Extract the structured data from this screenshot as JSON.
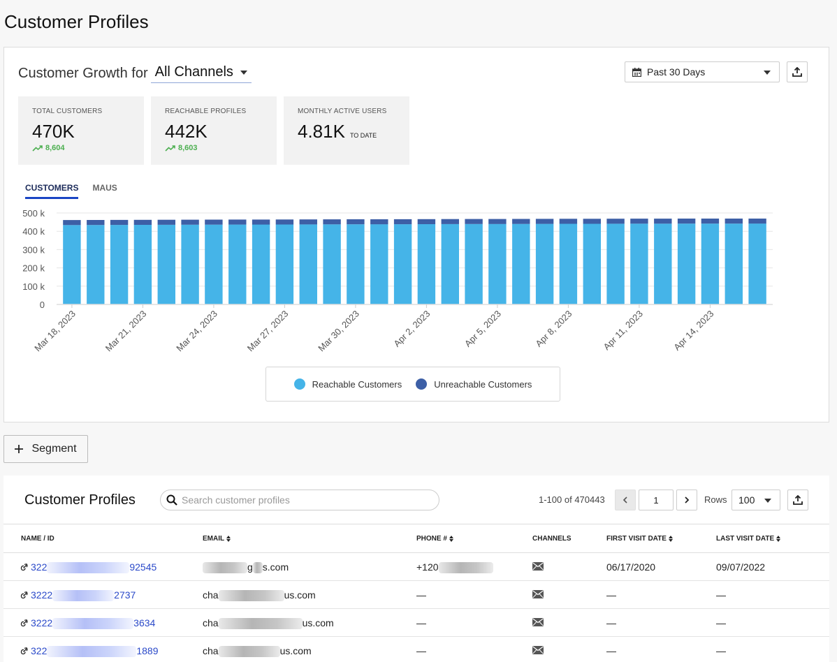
{
  "page": {
    "title": "Customer Profiles"
  },
  "growth": {
    "title_prefix": "Customer Growth for",
    "channel": "All Channels",
    "date_range": "Past 30 Days"
  },
  "stats": [
    {
      "label": "TOTAL CUSTOMERS",
      "value": "470K",
      "delta": "8,604"
    },
    {
      "label": "REACHABLE PROFILES",
      "value": "442K",
      "delta": "8,603"
    },
    {
      "label": "MONTHLY ACTIVE USERS",
      "value": "4.81K",
      "suffix": "TO DATE"
    }
  ],
  "tabs": [
    {
      "label": "CUSTOMERS",
      "active": true
    },
    {
      "label": "MAUS",
      "active": false
    }
  ],
  "chart_data": {
    "type": "bar",
    "stacked": true,
    "x_tick_labels": [
      "Mar 18, 2023",
      "Mar 21, 2023",
      "Mar 24, 2023",
      "Mar 27, 2023",
      "Mar 30, 2023",
      "Apr 2, 2023",
      "Apr 5, 2023",
      "Apr 8, 2023",
      "Apr 11, 2023",
      "Apr 14, 2023"
    ],
    "y_ticks": [
      "0",
      "100 k",
      "200 k",
      "300 k",
      "400 k",
      "500 k"
    ],
    "ylim": [
      0,
      500000
    ],
    "series": [
      {
        "name": "Reachable Customers",
        "color": "#45b4e8",
        "values": [
          434000,
          434400,
          434800,
          435200,
          435600,
          436000,
          436300,
          436600,
          436900,
          437200,
          437500,
          437800,
          438100,
          438400,
          438700,
          439000,
          439300,
          439600,
          439900,
          440200,
          440500,
          440800,
          441100,
          441300,
          441500,
          441700,
          441900,
          442000,
          442100,
          442200
        ]
      },
      {
        "name": "Unreachable Customers",
        "color": "#3d5fa6",
        "values": [
          27400,
          27400,
          27400,
          27400,
          27400,
          27400,
          27400,
          27400,
          27400,
          27400,
          27400,
          27400,
          27400,
          27400,
          27400,
          27400,
          27400,
          27400,
          27400,
          27400,
          27400,
          27400,
          27400,
          27400,
          27400,
          27400,
          27400,
          27400,
          27400,
          27400
        ]
      }
    ],
    "legend": "bottom-center",
    "grid": true
  },
  "segment_button": "Segment",
  "profiles": {
    "title": "Customer Profiles",
    "search_placeholder": "Search customer profiles",
    "pagination": "1-100 of 470443",
    "page": "1",
    "rows_label": "Rows",
    "rows_value": "100",
    "columns": [
      "NAME / ID",
      "EMAIL",
      "PHONE #",
      "CHANNELS",
      "FIRST VISIT DATE",
      "LAST VISIT DATE"
    ],
    "rows": [
      {
        "id_start": "322",
        "id_end": "92545",
        "email_start": "",
        "email_end": "s.com",
        "phone": "+120",
        "first_visit": "06/17/2020",
        "last_visit": "09/07/2022"
      },
      {
        "id_start": "3222",
        "id_end": "2737",
        "email_start": "cha",
        "email_end": "us.com",
        "phone": "—",
        "first_visit": "—",
        "last_visit": "—"
      },
      {
        "id_start": "3222",
        "id_end": "3634",
        "email_start": "cha",
        "email_end": "us.com",
        "phone": "—",
        "first_visit": "—",
        "last_visit": "—"
      },
      {
        "id_start": "322",
        "id_end": "1889",
        "email_start": "cha",
        "email_end": "us.com",
        "phone": "—",
        "first_visit": "—",
        "last_visit": "—"
      }
    ]
  }
}
